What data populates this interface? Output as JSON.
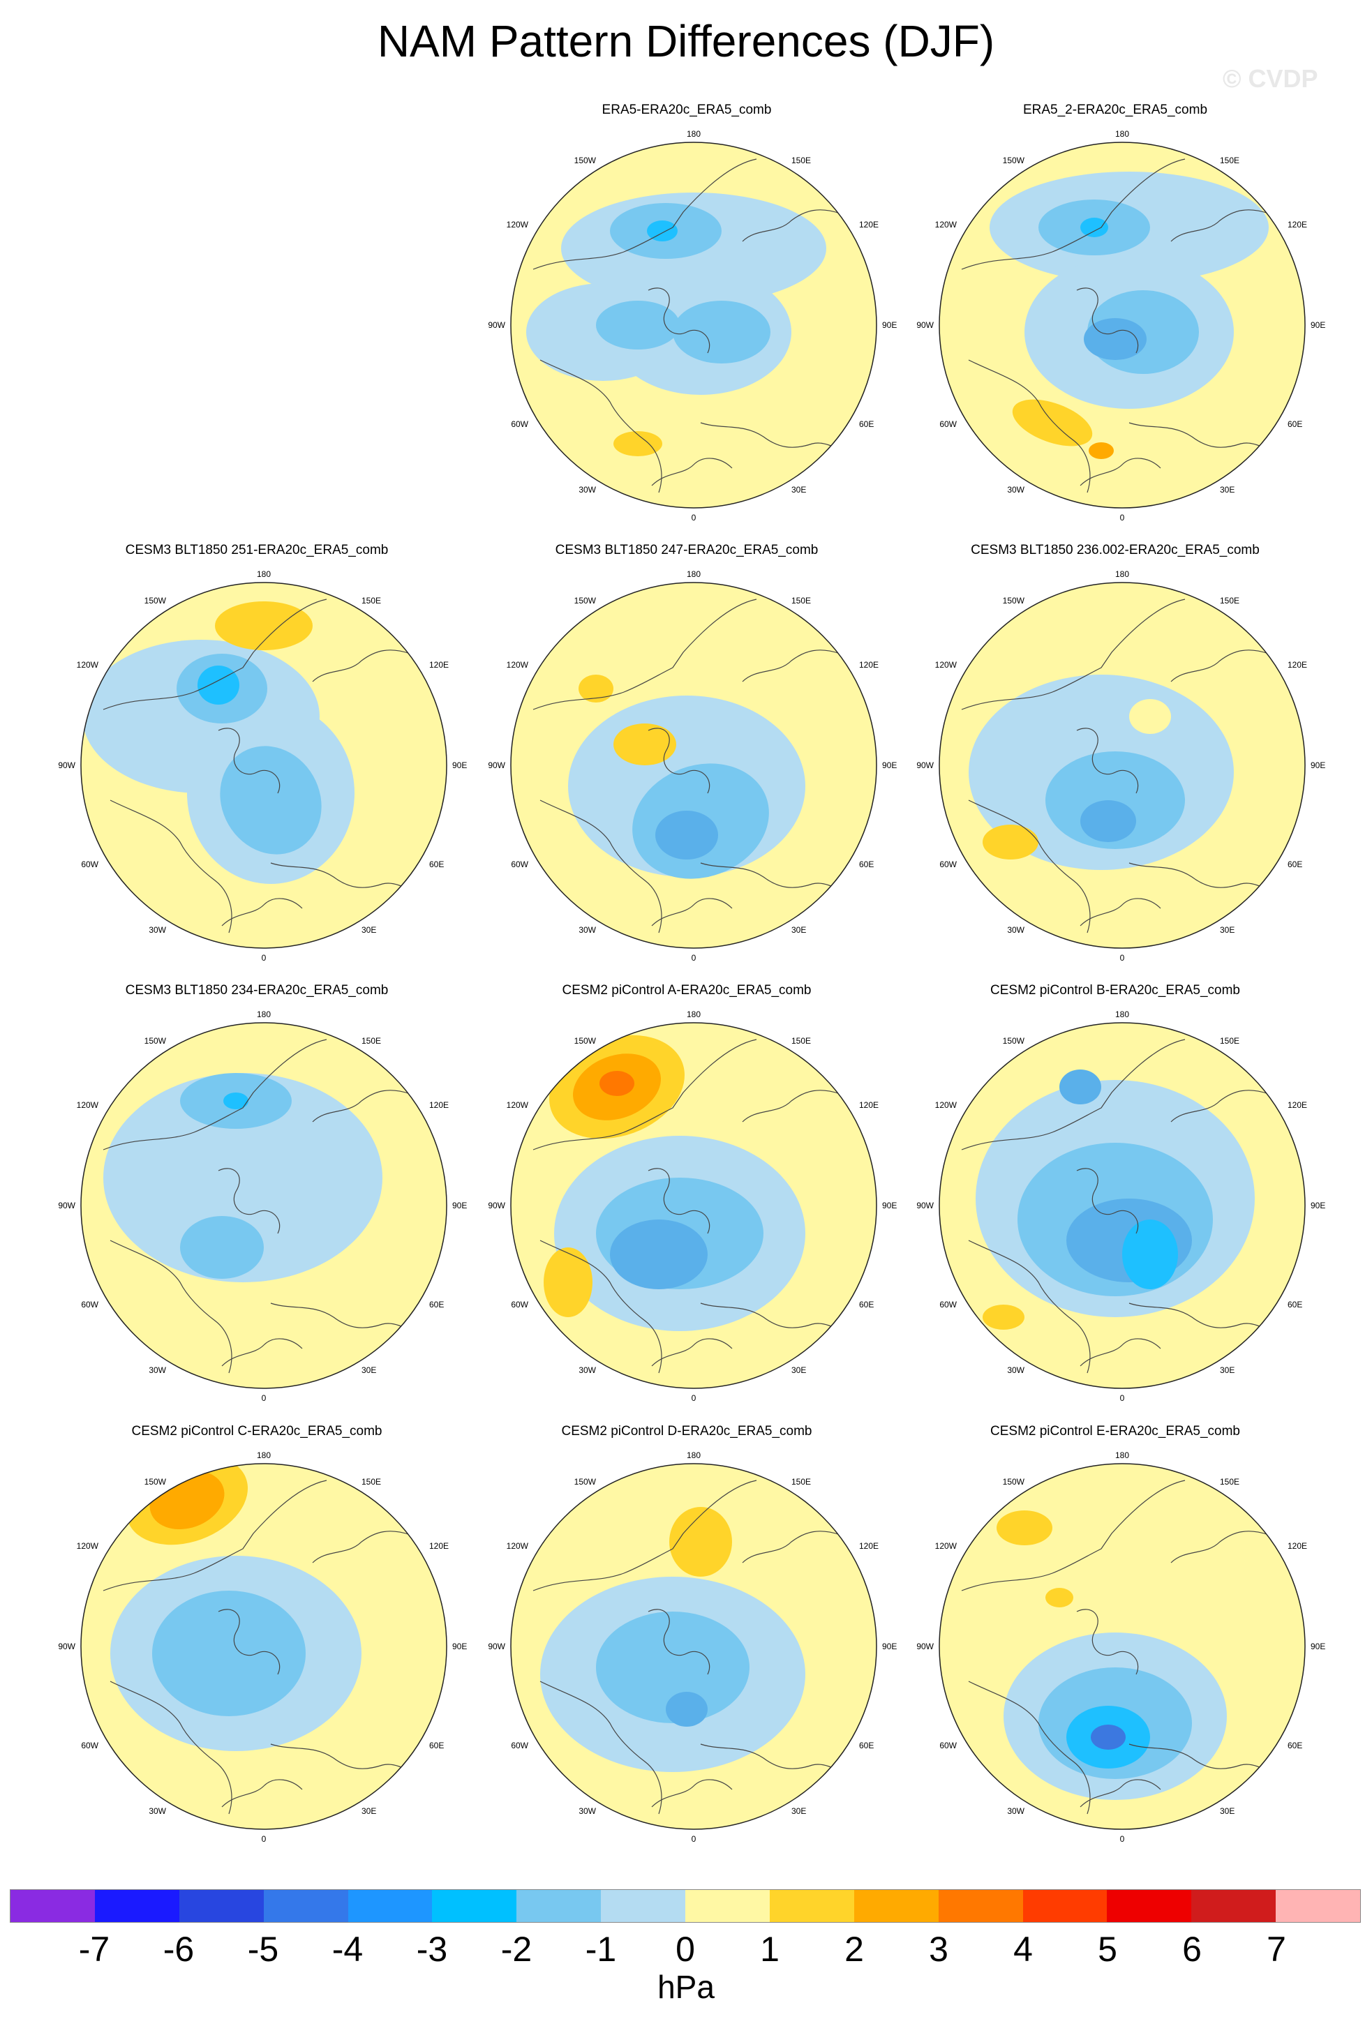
{
  "figure_title": "NAM Pattern Differences (DJF)",
  "watermark": "© CVDP",
  "longitude_labels": {
    "top": "180",
    "top_left": "150W",
    "top_right": "150E",
    "upper_left": "120W",
    "upper_right": "120E",
    "left": "90W",
    "right": "90E",
    "lower_left": "60W",
    "lower_right": "60E",
    "bottom_left": "30W",
    "bottom_right": "30E",
    "bottom": "0"
  },
  "panels": [
    {
      "title": "ERA5-ERA20c_ERA5_comb"
    },
    {
      "title": "ERA5_2-ERA20c_ERA5_comb"
    },
    {
      "title": "CESM3 BLT1850 251-ERA20c_ERA5_comb"
    },
    {
      "title": "CESM3 BLT1850 247-ERA20c_ERA5_comb"
    },
    {
      "title": "CESM3 BLT1850 236.002-ERA20c_ERA5_comb"
    },
    {
      "title": "CESM3 BLT1850 234-ERA20c_ERA5_comb"
    },
    {
      "title": "CESM2 piControl A-ERA20c_ERA5_comb"
    },
    {
      "title": "CESM2 piControl B-ERA20c_ERA5_comb"
    },
    {
      "title": "CESM2 piControl C-ERA20c_ERA5_comb"
    },
    {
      "title": "CESM2 piControl D-ERA20c_ERA5_comb"
    },
    {
      "title": "CESM2 piControl E-ERA20c_ERA5_comb"
    }
  ],
  "colorbar": {
    "units": "hPa",
    "ticks": [
      "-7",
      "-6",
      "-5",
      "-4",
      "-3",
      "-2",
      "-1",
      "0",
      "1",
      "2",
      "3",
      "4",
      "5",
      "6",
      "7"
    ],
    "colors": [
      "#8a2be2",
      "#1a1aff",
      "#2846e0",
      "#3478ea",
      "#1e96ff",
      "#00c0ff",
      "#78c8f0",
      "#b4dcf2",
      "#fff8a4",
      "#ffd42a",
      "#ffaa00",
      "#ff7800",
      "#ff3c00",
      "#ee0000",
      "#d01c1c",
      "#ffb4b4"
    ]
  },
  "fill_colors": {
    "neg1": "#b4dcf2",
    "neg2": "#78c8f0",
    "neg3": "#5ab0ea",
    "neg4": "#1ec0ff",
    "neg5": "#3c78e0",
    "pos1": "#fff8a4",
    "pos2": "#ffd42a",
    "pos3": "#ffaa00",
    "pos4": "#ff7800",
    "coast": "#444444"
  }
}
